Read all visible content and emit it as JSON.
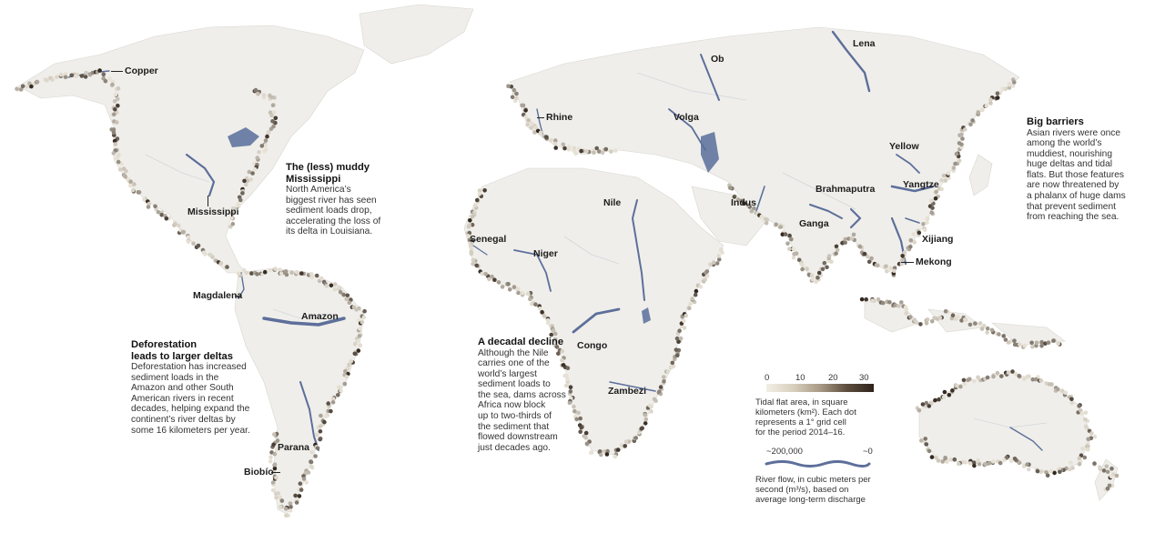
{
  "rivers": {
    "copper": "Copper",
    "mississippi": "Mississippi",
    "magdalena": "Magdalena",
    "amazon": "Amazon",
    "parana": "Parana",
    "biobio": "Biobío",
    "senegal": "Senegal",
    "niger": "Niger",
    "nile": "Nile",
    "congo": "Congo",
    "zambezi": "Zambezi",
    "rhine": "Rhine",
    "volga": "Volga",
    "ob": "Ob",
    "lena": "Lena",
    "indus": "Indus",
    "ganga": "Ganga",
    "brahmaputra": "Brahmaputra",
    "yellow": "Yellow",
    "yangtze": "Yangtze",
    "xijiang": "Xijiang",
    "mekong": "Mekong"
  },
  "annotations": {
    "mississippi": {
      "heading": [
        "The (less) muddy",
        "Mississippi"
      ],
      "body": [
        "North America’s",
        "biggest river has seen",
        "sediment loads drop,",
        "accelerating the loss of",
        "its delta in Louisiana."
      ]
    },
    "deforestation": {
      "heading": [
        "Deforestation",
        "leads to larger deltas"
      ],
      "body": [
        "Deforestation has increased",
        "sediment loads in the",
        "Amazon and other South",
        "American rivers in recent",
        "decades, helping expand the",
        "continent’s river deltas by",
        "some 16 kilometers per year."
      ]
    },
    "decadal": {
      "heading": [
        "A decadal decline"
      ],
      "body": [
        "Although the Nile",
        "carries one of the",
        "world’s largest",
        "sediment loads to",
        "the sea, dams across",
        "Africa now block",
        "up to two-thirds of",
        "the sediment that",
        "flowed downstream",
        "just decades ago."
      ]
    },
    "barriers": {
      "heading": [
        "Big barriers"
      ],
      "body": [
        "Asian rivers were once",
        "among the world’s",
        "muddiest, nourishing",
        "huge deltas and tidal",
        "flats. But those features",
        "are now threatened by",
        "a phalanx of huge dams",
        "that prevent sediment",
        "from reaching the sea."
      ]
    }
  },
  "legend": {
    "ticks": [
      "0",
      "10",
      "20",
      "30"
    ],
    "tidal_description": [
      "Tidal flat area, in square",
      "kilometers (km²). Each dot",
      "represents a 1° grid cell",
      "for the period 2014–16."
    ],
    "flow_max": "~200,000",
    "flow_min": "~0",
    "flow_description": [
      "River flow, in cubic meters per",
      "second (m³/s), based on",
      "average long-term discharge"
    ]
  },
  "colors": {
    "land": "#efeeea",
    "river": "#5d6f9a",
    "dot_light": "#e8e2d6",
    "dot_dark": "#2e231b"
  }
}
